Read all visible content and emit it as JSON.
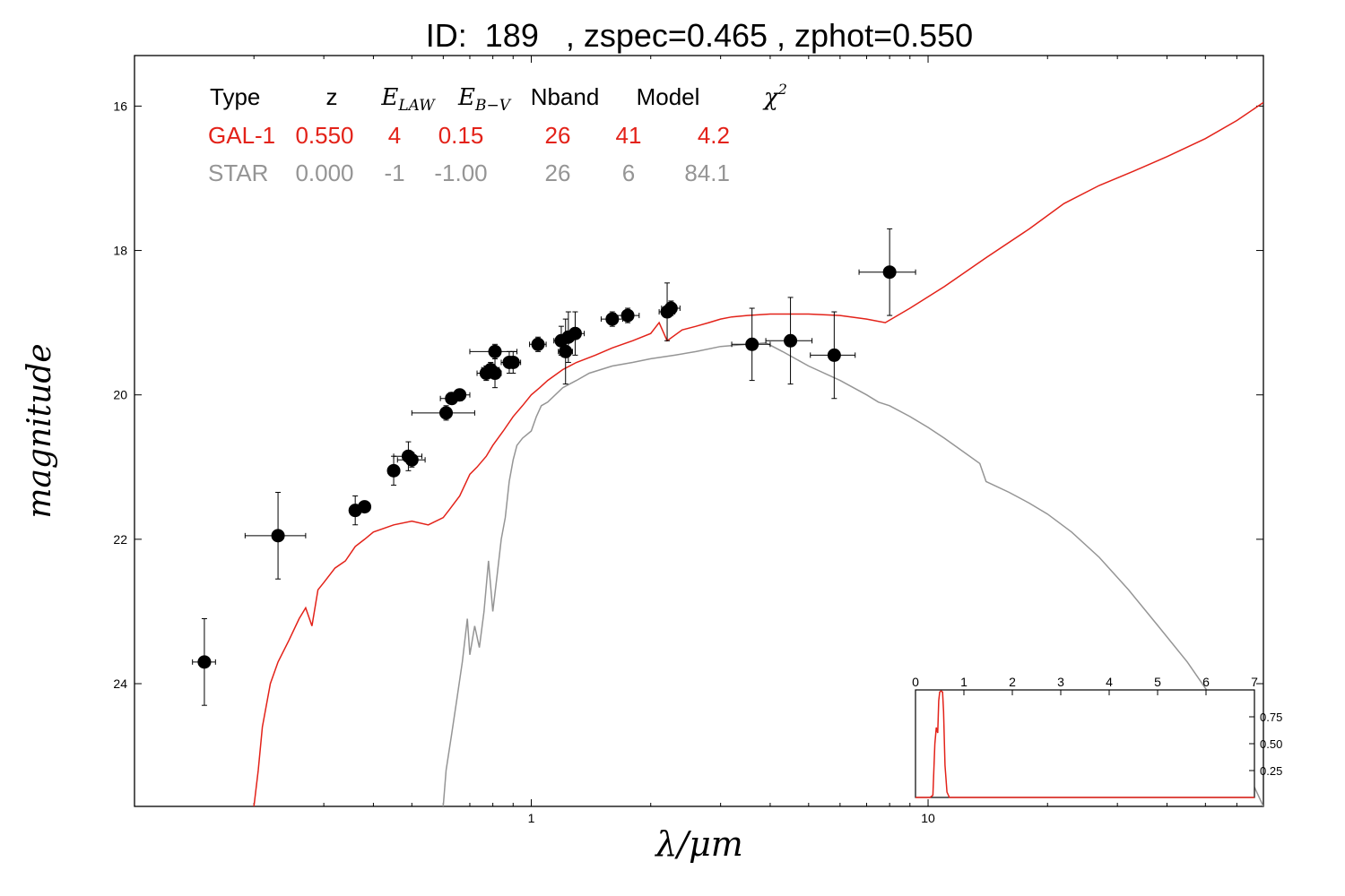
{
  "title": "ID:  189   , zspec=0.465 , zphot=0.550",
  "chart_data": {
    "type": "scatter",
    "xlabel": "λ/μm",
    "ylabel": "magnitude",
    "x_scale": "log",
    "xlim": [
      0.1,
      70
    ],
    "ylim": [
      25.7,
      15.3
    ],
    "x_tick_labels": [
      {
        "value": 1,
        "label": "1"
      },
      {
        "value": 10,
        "label": "10"
      }
    ],
    "y_ticks": [
      16,
      18,
      20,
      22,
      24
    ],
    "table": {
      "headers": [
        {
          "text": "Type",
          "italic": false
        },
        {
          "text": "z",
          "italic": false
        },
        {
          "text": "E",
          "sub": "LAW",
          "italic": true
        },
        {
          "text": "E",
          "sub": "B−V",
          "italic": true
        },
        {
          "text": "Nband",
          "italic": false
        },
        {
          "text": "Model",
          "italic": false
        },
        {
          "text": "χ",
          "sup": "2",
          "italic": true
        }
      ],
      "rows": [
        {
          "color": "#e32219",
          "cells": [
            "GAL-1",
            "0.550",
            "4",
            "0.15",
            "26",
            "41",
            "4.2"
          ]
        },
        {
          "color": "#959595",
          "cells": [
            "STAR",
            "0.000",
            "-1",
            "-1.00",
            "26",
            "6",
            "84.1"
          ]
        }
      ]
    },
    "series": [
      {
        "kind": "model",
        "color": "#e32219",
        "points": [
          [
            0.2,
            25.7
          ],
          [
            0.205,
            25.2
          ],
          [
            0.21,
            24.6
          ],
          [
            0.22,
            24.0
          ],
          [
            0.23,
            23.7
          ],
          [
            0.245,
            23.4
          ],
          [
            0.26,
            23.1
          ],
          [
            0.27,
            22.95
          ],
          [
            0.28,
            23.2
          ],
          [
            0.29,
            22.7
          ],
          [
            0.3,
            22.6
          ],
          [
            0.32,
            22.4
          ],
          [
            0.34,
            22.3
          ],
          [
            0.36,
            22.1
          ],
          [
            0.38,
            22.0
          ],
          [
            0.4,
            21.9
          ],
          [
            0.45,
            21.8
          ],
          [
            0.5,
            21.75
          ],
          [
            0.55,
            21.8
          ],
          [
            0.6,
            21.7
          ],
          [
            0.62,
            21.6
          ],
          [
            0.66,
            21.4
          ],
          [
            0.7,
            21.1
          ],
          [
            0.73,
            21.0
          ],
          [
            0.77,
            20.85
          ],
          [
            0.8,
            20.7
          ],
          [
            0.85,
            20.5
          ],
          [
            0.9,
            20.3
          ],
          [
            0.95,
            20.15
          ],
          [
            1.0,
            20.0
          ],
          [
            1.05,
            19.9
          ],
          [
            1.1,
            19.8
          ],
          [
            1.2,
            19.65
          ],
          [
            1.3,
            19.55
          ],
          [
            1.45,
            19.45
          ],
          [
            1.6,
            19.35
          ],
          [
            1.8,
            19.25
          ],
          [
            2.0,
            19.15
          ],
          [
            2.1,
            19.0
          ],
          [
            2.2,
            19.25
          ],
          [
            2.4,
            19.1
          ],
          [
            2.6,
            19.05
          ],
          [
            2.8,
            19.0
          ],
          [
            3.0,
            18.95
          ],
          [
            3.2,
            18.92
          ],
          [
            3.5,
            18.9
          ],
          [
            4.0,
            18.88
          ],
          [
            4.5,
            18.88
          ],
          [
            5.0,
            18.88
          ],
          [
            6.0,
            18.9
          ],
          [
            7.0,
            18.95
          ],
          [
            7.8,
            19.0
          ],
          [
            9.0,
            18.8
          ],
          [
            11.0,
            18.5
          ],
          [
            14.0,
            18.1
          ],
          [
            18.0,
            17.7
          ],
          [
            22.0,
            17.35
          ],
          [
            27.0,
            17.1
          ],
          [
            33.0,
            16.9
          ],
          [
            40.0,
            16.7
          ],
          [
            50.0,
            16.45
          ],
          [
            60.0,
            16.2
          ],
          [
            70.0,
            15.95
          ]
        ]
      },
      {
        "kind": "model",
        "color": "#959595",
        "points": [
          [
            0.6,
            25.7
          ],
          [
            0.61,
            25.2
          ],
          [
            0.63,
            24.7
          ],
          [
            0.65,
            24.2
          ],
          [
            0.67,
            23.7
          ],
          [
            0.69,
            23.1
          ],
          [
            0.7,
            23.6
          ],
          [
            0.72,
            23.2
          ],
          [
            0.74,
            23.5
          ],
          [
            0.76,
            23.0
          ],
          [
            0.78,
            22.3
          ],
          [
            0.8,
            23.0
          ],
          [
            0.82,
            22.5
          ],
          [
            0.84,
            22.0
          ],
          [
            0.86,
            21.7
          ],
          [
            0.88,
            21.2
          ],
          [
            0.9,
            20.9
          ],
          [
            0.92,
            20.7
          ],
          [
            0.95,
            20.6
          ],
          [
            1.0,
            20.5
          ],
          [
            1.03,
            20.3
          ],
          [
            1.06,
            20.15
          ],
          [
            1.1,
            20.1
          ],
          [
            1.2,
            19.9
          ],
          [
            1.3,
            19.8
          ],
          [
            1.4,
            19.7
          ],
          [
            1.6,
            19.6
          ],
          [
            1.8,
            19.55
          ],
          [
            2.0,
            19.5
          ],
          [
            2.3,
            19.45
          ],
          [
            2.6,
            19.4
          ],
          [
            3.0,
            19.33
          ],
          [
            3.5,
            19.3
          ],
          [
            3.9,
            19.28
          ],
          [
            4.3,
            19.4
          ],
          [
            5.0,
            19.6
          ],
          [
            6.0,
            19.8
          ],
          [
            7.0,
            20.0
          ],
          [
            7.5,
            20.1
          ],
          [
            8.0,
            20.15
          ],
          [
            9.0,
            20.3
          ],
          [
            10.0,
            20.45
          ],
          [
            11.0,
            20.6
          ],
          [
            12.0,
            20.75
          ],
          [
            13.5,
            20.95
          ],
          [
            14.0,
            21.2
          ],
          [
            16.0,
            21.35
          ],
          [
            18.0,
            21.5
          ],
          [
            20.0,
            21.65
          ],
          [
            23.0,
            21.9
          ],
          [
            27.0,
            22.25
          ],
          [
            32.0,
            22.7
          ],
          [
            38.0,
            23.2
          ],
          [
            45.0,
            23.7
          ],
          [
            52.0,
            24.2
          ],
          [
            60.0,
            24.8
          ],
          [
            66.0,
            25.4
          ],
          [
            70.0,
            25.7
          ]
        ]
      }
    ],
    "photometry": [
      {
        "x": 0.15,
        "y": 23.7,
        "xerr": 0.01,
        "yerr": 0.6
      },
      {
        "x": 0.23,
        "y": 21.95,
        "xerr": 0.04,
        "yerr": 0.6
      },
      {
        "x": 0.36,
        "y": 21.6,
        "xerr": 0.01,
        "yerr": 0.2
      },
      {
        "x": 0.38,
        "y": 21.55,
        "xerr": 0.01,
        "yerr": 0.05
      },
      {
        "x": 0.45,
        "y": 21.05,
        "xerr": 0.015,
        "yerr": 0.2
      },
      {
        "x": 0.49,
        "y": 20.85,
        "xerr": 0.04,
        "yerr": 0.2
      },
      {
        "x": 0.5,
        "y": 20.9,
        "xerr": 0.04,
        "yerr": 0.1
      },
      {
        "x": 0.61,
        "y": 20.25,
        "xerr": 0.11,
        "yerr": 0.1
      },
      {
        "x": 0.63,
        "y": 20.05,
        "xerr": 0.04,
        "yerr": 0.05
      },
      {
        "x": 0.66,
        "y": 20.0,
        "xerr": 0.04,
        "yerr": 0.05
      },
      {
        "x": 0.77,
        "y": 19.7,
        "xerr": 0.04,
        "yerr": 0.1
      },
      {
        "x": 0.79,
        "y": 19.65,
        "xerr": 0.04,
        "yerr": 0.1
      },
      {
        "x": 0.81,
        "y": 19.4,
        "xerr": 0.11,
        "yerr": 0.1
      },
      {
        "x": 0.81,
        "y": 19.7,
        "xerr": 0.03,
        "yerr": 0.2
      },
      {
        "x": 0.88,
        "y": 19.55,
        "xerr": 0.04,
        "yerr": 0.15
      },
      {
        "x": 0.9,
        "y": 19.55,
        "xerr": 0.04,
        "yerr": 0.15
      },
      {
        "x": 1.04,
        "y": 19.3,
        "xerr": 0.05,
        "yerr": 0.1
      },
      {
        "x": 1.19,
        "y": 19.25,
        "xerr": 0.05,
        "yerr": 0.2
      },
      {
        "x": 1.22,
        "y": 19.4,
        "xerr": 0.05,
        "yerr": 0.45
      },
      {
        "x": 1.24,
        "y": 19.2,
        "xerr": 0.06,
        "yerr": 0.35
      },
      {
        "x": 1.29,
        "y": 19.15,
        "xerr": 0.07,
        "yerr": 0.3
      },
      {
        "x": 1.6,
        "y": 18.95,
        "xerr": 0.1,
        "yerr": 0.1
      },
      {
        "x": 1.75,
        "y": 18.9,
        "xerr": 0.12,
        "yerr": 0.1
      },
      {
        "x": 2.2,
        "y": 18.85,
        "xerr": 0.1,
        "yerr": 0.4
      },
      {
        "x": 2.25,
        "y": 18.8,
        "xerr": 0.12,
        "yerr": 0.1
      },
      {
        "x": 3.6,
        "y": 19.3,
        "xerr": 0.4,
        "yerr": 0.5
      },
      {
        "x": 4.5,
        "y": 19.25,
        "xerr": 0.6,
        "yerr": 0.6
      },
      {
        "x": 5.8,
        "y": 19.45,
        "xerr": 0.75,
        "yerr": 0.6
      },
      {
        "x": 8.0,
        "y": 18.3,
        "xerr": 1.3,
        "yerr": 0.6
      }
    ],
    "inset": {
      "xlim": [
        0,
        7
      ],
      "ylim": [
        0,
        1
      ],
      "x_ticks": [
        0,
        1,
        2,
        3,
        4,
        5,
        6,
        7
      ],
      "y_ticks": [
        {
          "value": 0.25,
          "label": "0.25"
        },
        {
          "value": 0.5,
          "label": "0.50"
        },
        {
          "value": 0.75,
          "label": "0.75"
        }
      ],
      "color": "#e32219",
      "points": [
        [
          0,
          0
        ],
        [
          0.3,
          0
        ],
        [
          0.36,
          0.02
        ],
        [
          0.4,
          0.5
        ],
        [
          0.43,
          0.65
        ],
        [
          0.46,
          0.6
        ],
        [
          0.48,
          0.9
        ],
        [
          0.5,
          0.98
        ],
        [
          0.53,
          0.99
        ],
        [
          0.56,
          0.98
        ],
        [
          0.58,
          0.8
        ],
        [
          0.61,
          0.3
        ],
        [
          0.65,
          0.05
        ],
        [
          0.7,
          0
        ],
        [
          7,
          0
        ]
      ]
    }
  }
}
